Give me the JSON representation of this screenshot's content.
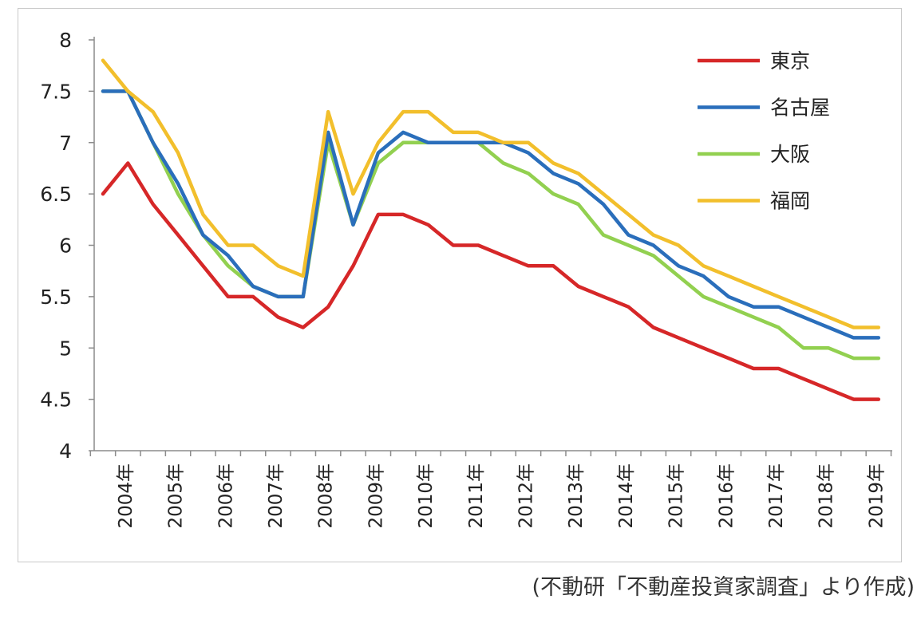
{
  "chart_data": {
    "type": "line",
    "title": "",
    "xlabel": "",
    "ylabel": "",
    "ylim": [
      4,
      8
    ],
    "yticks": [
      "4",
      "4.5",
      "5",
      "5.5",
      "6",
      "6.5",
      "7",
      "7.5",
      "8"
    ],
    "x_labels": [
      "2004年",
      "2005年",
      "2006年",
      "2007年",
      "2008年",
      "2009年",
      "2010年",
      "2011年",
      "2012年",
      "2013年",
      "2014年",
      "2015年",
      "2016年",
      "2017年",
      "2018年",
      "2019年"
    ],
    "points_per_year": 2,
    "legend_position": "top-right",
    "grid": false,
    "series": [
      {
        "name": "東京",
        "color": "#d62728",
        "values": [
          6.5,
          6.8,
          6.4,
          6.1,
          5.8,
          5.5,
          5.5,
          5.3,
          5.2,
          5.4,
          5.8,
          6.3,
          6.3,
          6.2,
          6.0,
          6.0,
          5.9,
          5.8,
          5.8,
          5.6,
          5.5,
          5.4,
          5.2,
          5.1,
          5.0,
          4.9,
          4.8,
          4.8,
          4.7,
          4.6,
          4.5,
          4.5
        ]
      },
      {
        "name": "名古屋",
        "color": "#2a6ebb",
        "values": [
          7.5,
          7.5,
          7.0,
          6.6,
          6.1,
          5.9,
          5.6,
          5.5,
          5.5,
          7.1,
          6.2,
          6.9,
          7.1,
          7.0,
          7.0,
          7.0,
          7.0,
          6.9,
          6.7,
          6.6,
          6.4,
          6.1,
          6.0,
          5.8,
          5.7,
          5.5,
          5.4,
          5.4,
          5.3,
          5.2,
          5.1,
          5.1
        ]
      },
      {
        "name": "大阪",
        "color": "#92d050",
        "values": [
          7.5,
          7.5,
          7.0,
          6.5,
          6.1,
          5.8,
          5.6,
          5.5,
          5.5,
          7.0,
          6.2,
          6.8,
          7.0,
          7.0,
          7.0,
          7.0,
          6.8,
          6.7,
          6.5,
          6.4,
          6.1,
          6.0,
          5.9,
          5.7,
          5.5,
          5.4,
          5.3,
          5.2,
          5.0,
          5.0,
          4.9,
          4.9
        ]
      },
      {
        "name": "福岡",
        "color": "#f2bf2c",
        "values": [
          7.8,
          7.5,
          7.3,
          6.9,
          6.3,
          6.0,
          6.0,
          5.8,
          5.7,
          7.3,
          6.5,
          7.0,
          7.3,
          7.3,
          7.1,
          7.1,
          7.0,
          7.0,
          6.8,
          6.7,
          6.5,
          6.3,
          6.1,
          6.0,
          5.8,
          5.7,
          5.6,
          5.5,
          5.4,
          5.3,
          5.2,
          5.2
        ]
      }
    ]
  },
  "source_note": "(不動研「不動産投資家調査」より作成)"
}
